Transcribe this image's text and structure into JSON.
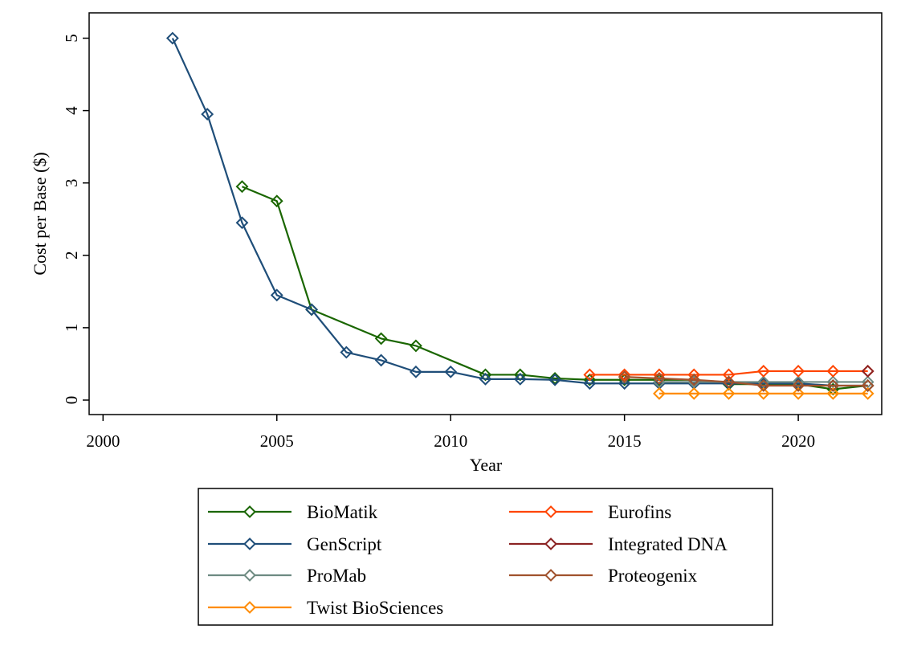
{
  "chart_data": {
    "type": "line",
    "title": "",
    "xlabel": "Year",
    "ylabel": "Cost per Base ($)",
    "xlim": [
      1999.6,
      2022.4
    ],
    "ylim": [
      -0.2,
      5.35
    ],
    "xticks": [
      2000,
      2005,
      2010,
      2015,
      2020
    ],
    "yticks": [
      0,
      1,
      2,
      3,
      4,
      5
    ],
    "grid": false,
    "legend_position": "bottom",
    "series": [
      {
        "name": "BioMatik",
        "color": "#1a6600",
        "marker": "diamond-open",
        "x": [
          2004,
          2005,
          2006,
          2008,
          2009,
          2011,
          2012,
          2013,
          2014,
          2015,
          2016,
          2017,
          2018,
          2019,
          2020,
          2021,
          2022
        ],
        "y": [
          2.95,
          2.75,
          1.25,
          0.85,
          0.75,
          0.35,
          0.35,
          0.3,
          0.28,
          0.28,
          0.28,
          0.28,
          0.22,
          0.22,
          0.22,
          0.15,
          0.2
        ]
      },
      {
        "name": "GenScript",
        "color": "#1f4e79",
        "marker": "diamond-open",
        "x": [
          2002,
          2003,
          2004,
          2005,
          2006,
          2007,
          2008,
          2009,
          2010,
          2011,
          2012,
          2013,
          2014,
          2015,
          2016,
          2017,
          2018,
          2019,
          2020,
          2021,
          2022
        ],
        "y": [
          5.0,
          3.95,
          2.45,
          1.45,
          1.25,
          0.66,
          0.55,
          0.39,
          0.39,
          0.29,
          0.29,
          0.28,
          0.23,
          0.23,
          0.23,
          0.23,
          0.23,
          0.23,
          0.23,
          0.2,
          0.2
        ]
      },
      {
        "name": "ProMab",
        "color": "#6e8b82",
        "marker": "diamond-open",
        "x": [
          2016,
          2017,
          2018,
          2019,
          2020,
          2021,
          2022
        ],
        "y": [
          0.25,
          0.25,
          0.25,
          0.25,
          0.25,
          0.25,
          0.25
        ]
      },
      {
        "name": "Twist BioSciences",
        "color": "#ff8c00",
        "marker": "diamond-open",
        "x": [
          2016,
          2017,
          2018,
          2019,
          2020,
          2021,
          2022
        ],
        "y": [
          0.09,
          0.09,
          0.09,
          0.09,
          0.09,
          0.09,
          0.09
        ]
      },
      {
        "name": "Eurofins",
        "color": "#ff4500",
        "marker": "diamond-open",
        "x": [
          2014,
          2015,
          2016,
          2017,
          2018,
          2019,
          2020,
          2021,
          2022
        ],
        "y": [
          0.35,
          0.35,
          0.35,
          0.35,
          0.35,
          0.4,
          0.4,
          0.4,
          0.4
        ]
      },
      {
        "name": "Integrated DNA",
        "color": "#8b2323",
        "marker": "diamond-open",
        "x": [
          2022
        ],
        "y": [
          0.4
        ]
      },
      {
        "name": "Proteogenix",
        "color": "#a0522d",
        "marker": "diamond-open",
        "x": [
          2015,
          2016,
          2017,
          2018,
          2019,
          2020,
          2021,
          2022
        ],
        "y": [
          0.32,
          0.3,
          0.28,
          0.25,
          0.2,
          0.2,
          0.2,
          0.2
        ]
      }
    ]
  }
}
